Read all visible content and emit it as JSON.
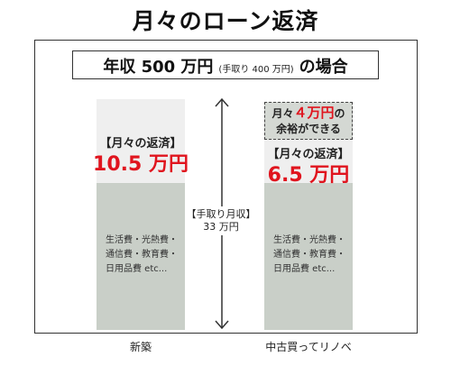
{
  "title": "月々のローン返済",
  "header": {
    "main": "年収 500 万円",
    "sub": "(手取り 400 万円)",
    "suffix": "の場合"
  },
  "left": {
    "head": "【月々の返済】",
    "value": "10.5 万円",
    "expenses": [
      "生活費・光熱費・",
      "通信費・教育費・",
      "日用品費 etc..."
    ],
    "category": "新築"
  },
  "right": {
    "surplus_prefix": "月々",
    "surplus_value": "４万円",
    "surplus_suffix": "の",
    "surplus_line2": "余裕ができる",
    "head": "【月々の返済】",
    "value": "6.5 万円",
    "expenses": [
      "生活費・光熱費・",
      "通信費・教育費・",
      "日用品費 etc..."
    ],
    "category": "中古買ってリノベ"
  },
  "middle": {
    "line1": "【手取り月収】",
    "line2": "33 万円"
  },
  "colors": {
    "accent": "#e0141e",
    "bar_top": "#efefef",
    "bar_bottom": "#c9cfc8"
  }
}
